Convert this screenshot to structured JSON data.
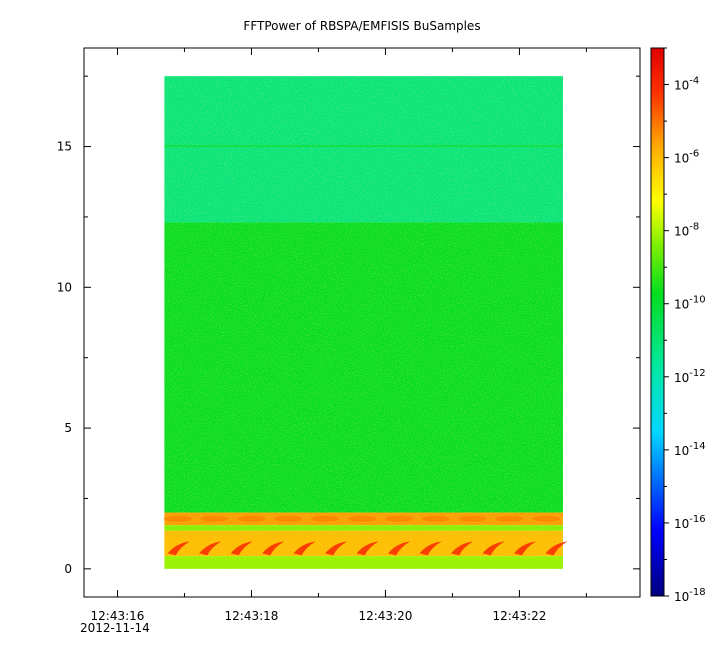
{
  "chart_data": {
    "type": "heatmap",
    "title": "FFTPower of RBSPA/EMFISIS  BuSamples",
    "xlabel": "",
    "ylabel": "",
    "date_label": "2012-11-14",
    "x_ticks": [
      "12:43:16",
      "12:43:18",
      "12:43:20",
      "12:43:22"
    ],
    "x_range_seconds": [
      15.5,
      23.8
    ],
    "data_x_range_seconds": [
      16.7,
      22.65
    ],
    "y_ticks": [
      0,
      5,
      10,
      15
    ],
    "ylim": [
      -1,
      18.5
    ],
    "data_y_range": [
      0,
      17.5
    ],
    "colorbar": {
      "scale": "log",
      "range": [
        1e-18,
        0.001
      ],
      "tick_labels": [
        {
          "mantissa": "10",
          "exp": "-4"
        },
        {
          "mantissa": "10",
          "exp": "-6"
        },
        {
          "mantissa": "10",
          "exp": "-8"
        },
        {
          "mantissa": "10",
          "exp": "-10"
        },
        {
          "mantissa": "10",
          "exp": "-12"
        },
        {
          "mantissa": "10",
          "exp": "-14"
        },
        {
          "mantissa": "10",
          "exp": "-16"
        },
        {
          "mantissa": "10",
          "exp": "-18"
        }
      ],
      "tick_exponents": [
        -4,
        -6,
        -8,
        -10,
        -12,
        -14,
        -16,
        -18
      ]
    },
    "bands": [
      {
        "from": 12.3,
        "to": 17.5,
        "level": -12.6
      },
      {
        "from": 2.0,
        "to": 12.3,
        "level": -10.6
      },
      {
        "from": 1.55,
        "to": 2.0,
        "level": -6.8
      },
      {
        "from": 1.35,
        "to": 1.55,
        "level": -9.5
      },
      {
        "from": 0.45,
        "to": 1.35,
        "level": -7.2
      },
      {
        "from": 0.0,
        "to": 0.45,
        "level": -9.3
      }
    ],
    "grid": false,
    "legend": "colorbar-right"
  }
}
